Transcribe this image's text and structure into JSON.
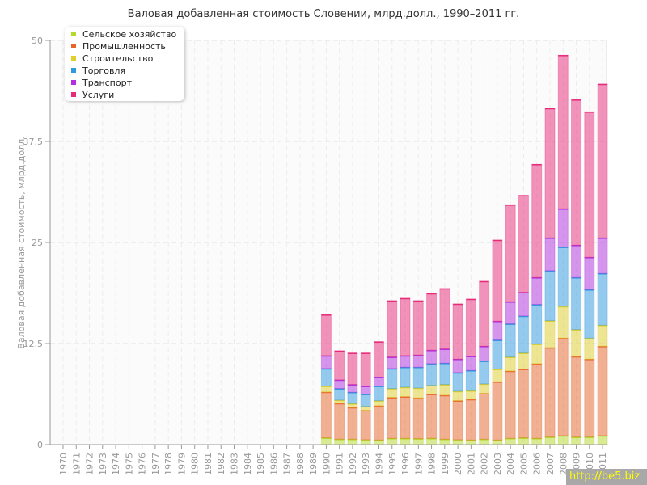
{
  "chart_data": {
    "type": "bar",
    "stacked": true,
    "title": "Валовая добавленная стоимость Словении, млрд.долл., 1990–2011 гг.",
    "xlabel": "",
    "ylabel": "Валовая добавленная стоимость, млрд.долл.",
    "ylim": [
      0,
      50
    ],
    "yticks": [
      "0",
      "12.5",
      "25",
      "37.5",
      "50"
    ],
    "ytick_values": [
      0,
      12.5,
      25,
      37.5,
      50
    ],
    "grid": true,
    "legend_position": "top-left",
    "categories": [
      "1970",
      "1971",
      "1972",
      "1973",
      "1974",
      "1975",
      "1976",
      "1977",
      "1978",
      "1979",
      "1980",
      "1981",
      "1982",
      "1983",
      "1984",
      "1985",
      "1986",
      "1987",
      "1988",
      "1989",
      "1990",
      "1991",
      "1992",
      "1993",
      "1994",
      "1995",
      "1996",
      "1997",
      "1998",
      "1999",
      "2000",
      "2001",
      "2002",
      "2003",
      "2004",
      "2005",
      "2006",
      "2007",
      "2008",
      "2009",
      "2010",
      "2011"
    ],
    "series": [
      {
        "name": "Сельское хозяйство",
        "color": "#b5d92a",
        "values": [
          null,
          null,
          null,
          null,
          null,
          null,
          null,
          null,
          null,
          null,
          null,
          null,
          null,
          null,
          null,
          null,
          null,
          null,
          null,
          null,
          0.83,
          0.67,
          0.67,
          0.6,
          0.57,
          0.77,
          0.77,
          0.73,
          0.77,
          0.67,
          0.6,
          0.57,
          0.67,
          0.57,
          0.77,
          0.83,
          0.77,
          0.93,
          1.1,
          0.93,
          0.93,
          1.1
        ]
      },
      {
        "name": "Промышленность",
        "color": "#e8652a",
        "values": [
          null,
          null,
          null,
          null,
          null,
          null,
          null,
          null,
          null,
          null,
          null,
          null,
          null,
          null,
          null,
          null,
          null,
          null,
          null,
          null,
          5.67,
          4.43,
          3.93,
          3.63,
          4.23,
          5.06,
          5.16,
          5.04,
          5.46,
          5.43,
          4.83,
          5.03,
          5.66,
          7.2,
          8.33,
          8.5,
          9.23,
          11.07,
          12.07,
          9.97,
          9.64,
          11.07
        ]
      },
      {
        "name": "Строительство",
        "color": "#e0d02a",
        "values": [
          null,
          null,
          null,
          null,
          null,
          null,
          null,
          null,
          null,
          null,
          null,
          null,
          null,
          null,
          null,
          null,
          null,
          null,
          null,
          null,
          0.73,
          0.4,
          0.47,
          0.5,
          0.63,
          1.1,
          1.17,
          1.23,
          1.1,
          1.33,
          1.17,
          1.07,
          1.17,
          1.56,
          1.73,
          2.0,
          2.43,
          3.33,
          3.93,
          3.33,
          2.6,
          2.6
        ]
      },
      {
        "name": "Торговля",
        "color": "#2e9ae0",
        "values": [
          null,
          null,
          null,
          null,
          null,
          null,
          null,
          null,
          null,
          null,
          null,
          null,
          null,
          null,
          null,
          null,
          null,
          null,
          null,
          null,
          2.17,
          1.43,
          1.4,
          1.5,
          1.8,
          2.47,
          2.47,
          2.57,
          2.67,
          2.64,
          2.3,
          2.5,
          2.83,
          3.6,
          4.1,
          4.57,
          4.9,
          6.17,
          7.33,
          6.44,
          6.0,
          6.4
        ]
      },
      {
        "name": "Транспорт",
        "color": "#b030e0",
        "values": [
          null,
          null,
          null,
          null,
          null,
          null,
          null,
          null,
          null,
          null,
          null,
          null,
          null,
          null,
          null,
          null,
          null,
          null,
          null,
          null,
          1.6,
          1.07,
          0.96,
          1.0,
          1.1,
          1.43,
          1.43,
          1.5,
          1.67,
          1.76,
          1.67,
          1.76,
          1.84,
          2.34,
          2.74,
          2.93,
          3.34,
          4.07,
          4.74,
          4.0,
          4.0,
          4.4
        ]
      },
      {
        "name": "Услуги",
        "color": "#e82a7a",
        "values": [
          null,
          null,
          null,
          null,
          null,
          null,
          null,
          null,
          null,
          null,
          null,
          null,
          null,
          null,
          null,
          null,
          null,
          null,
          null,
          null,
          5.07,
          3.6,
          3.9,
          4.1,
          4.4,
          6.97,
          7.1,
          6.73,
          7.03,
          7.47,
          6.83,
          7.07,
          8.03,
          10.03,
          12.0,
          12.0,
          14.0,
          16.03,
          19.0,
          18.0,
          18.0,
          19.03
        ]
      }
    ]
  },
  "watermark": "http://be5.biz"
}
